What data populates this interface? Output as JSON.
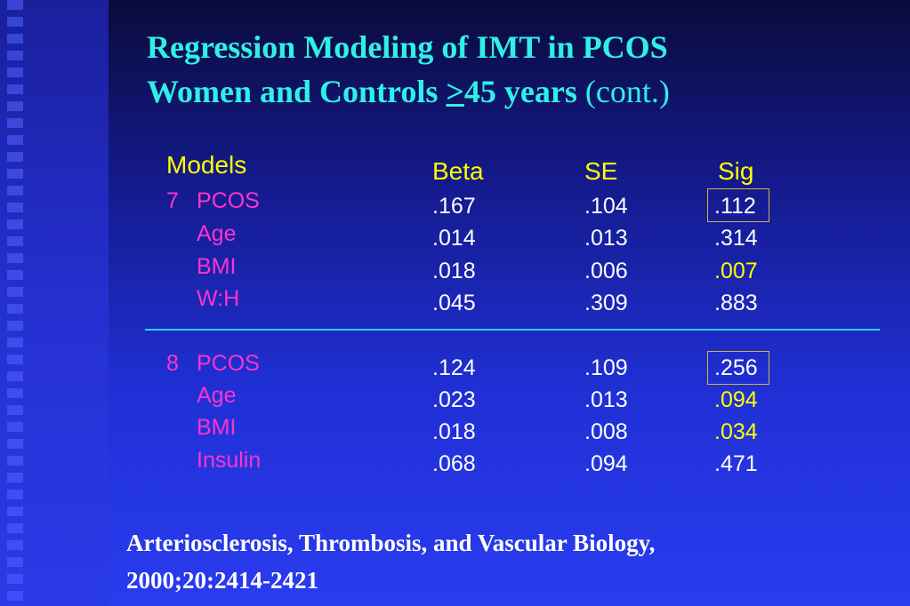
{
  "title": {
    "line1": "Regression Modeling of IMT in PCOS",
    "line2_a": "Women and Controls ",
    "line2_ge": ">",
    "line2_b": "45 years",
    "line2_cont": " (cont.)"
  },
  "headers": {
    "models": "Models",
    "beta": "Beta",
    "se": "SE",
    "sig": "Sig"
  },
  "model7": {
    "number": "7",
    "rows": [
      {
        "label": "PCOS",
        "beta": ".167",
        "se": ".104",
        "sig": ".112"
      },
      {
        "label": "Age",
        "beta": ".014",
        "se": ".013",
        "sig": ".314"
      },
      {
        "label": "BMI",
        "beta": ".018",
        "se": ".006",
        "sig": ".007"
      },
      {
        "label": "W:H",
        "beta": ".045",
        "se": ".309",
        "sig": ".883"
      }
    ]
  },
  "model8": {
    "number": "8",
    "rows": [
      {
        "label": "PCOS",
        "beta": ".124",
        "se": ".109",
        "sig": ".256"
      },
      {
        "label": "Age",
        "beta": ".023",
        "se": ".013",
        "sig": ".094"
      },
      {
        "label": "BMI",
        "beta": ".018",
        "se": ".008",
        "sig": ".034"
      },
      {
        "label": "Insulin",
        "beta": ".068",
        "se": ".094",
        "sig": ".471"
      }
    ]
  },
  "citation": {
    "line1": "Arteriosclerosis, Thrombosis, and Vascular Biology,",
    "line2": "2000;20:2414-2421"
  },
  "colors": {
    "title": "#2ff0e6",
    "header": "#ffff00",
    "label": "#ff33cc",
    "value": "#ffffff",
    "highlight": "#ffff00",
    "divider": "#22d8f0"
  }
}
